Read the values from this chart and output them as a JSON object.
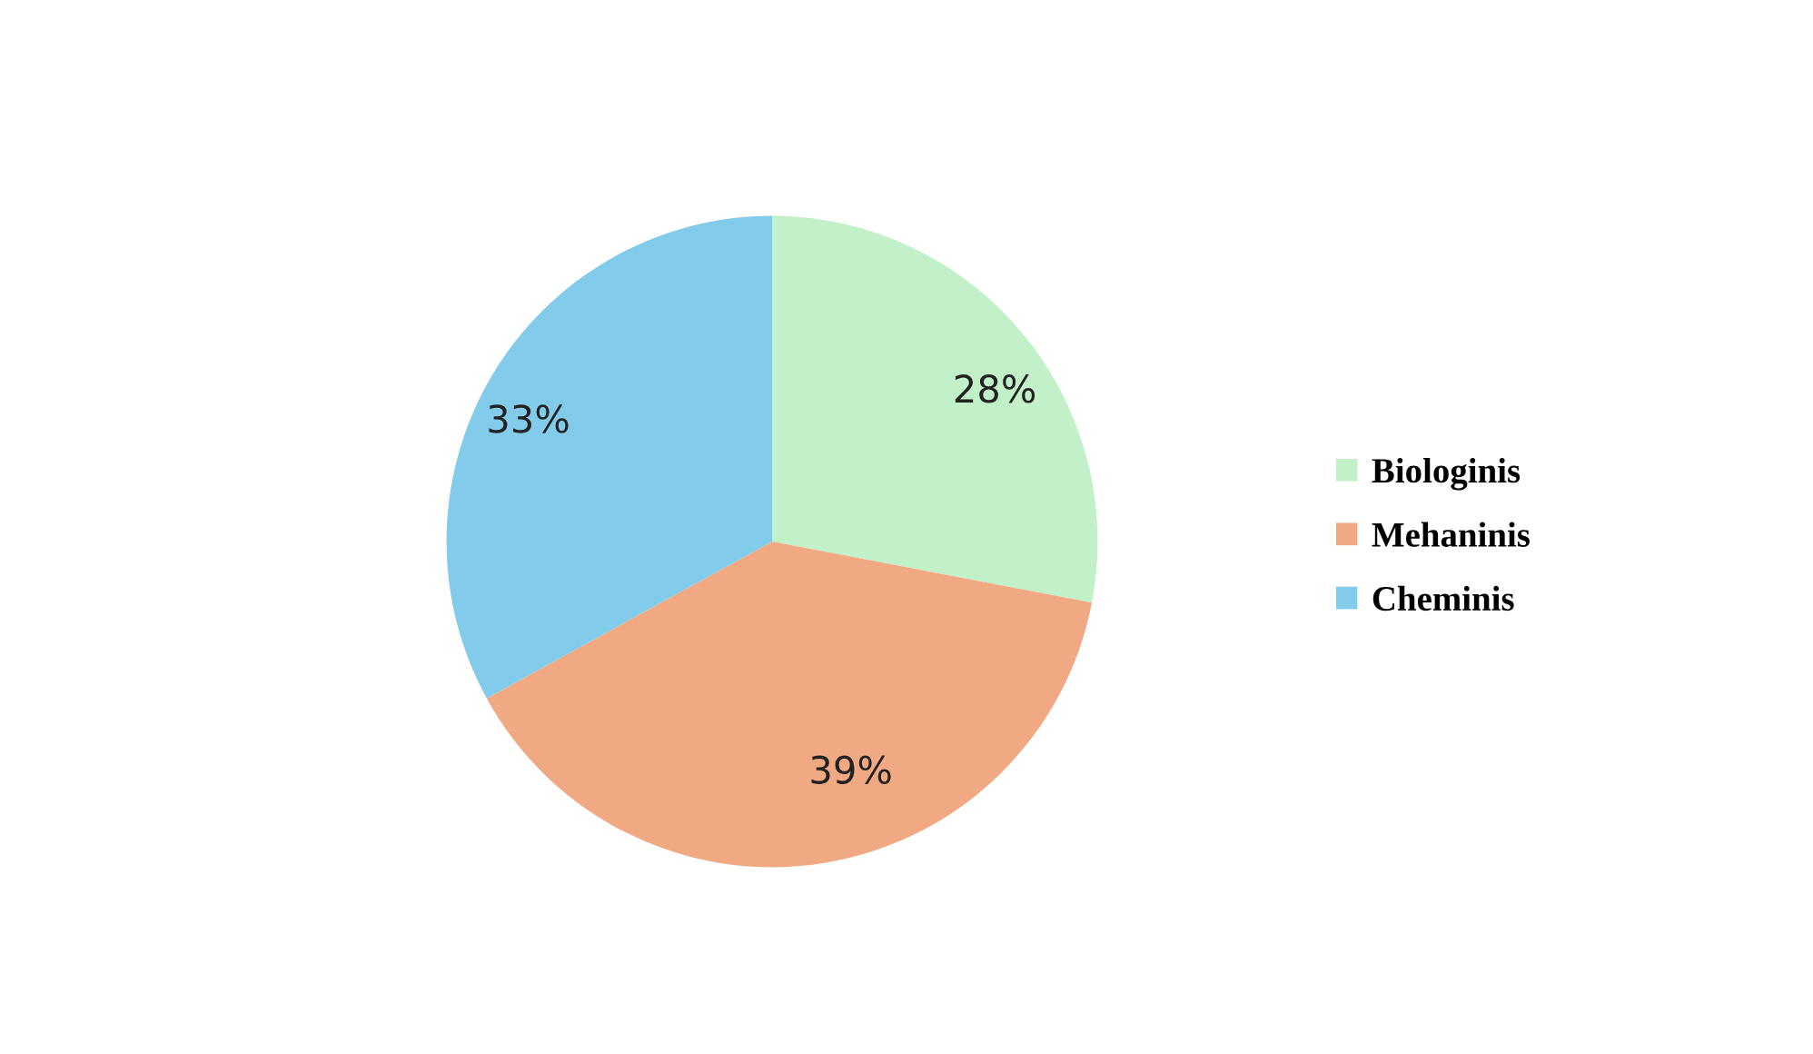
{
  "chart_data": {
    "type": "pie",
    "categories": [
      "Biologinis",
      "Mehaninis",
      "Cheminis"
    ],
    "values": [
      28,
      39,
      33
    ],
    "colors": [
      "#c2f0c8",
      "#f0a983",
      "#83cbeb"
    ],
    "value_labels": [
      "28%",
      "39%",
      "33%"
    ],
    "legend": "right"
  }
}
